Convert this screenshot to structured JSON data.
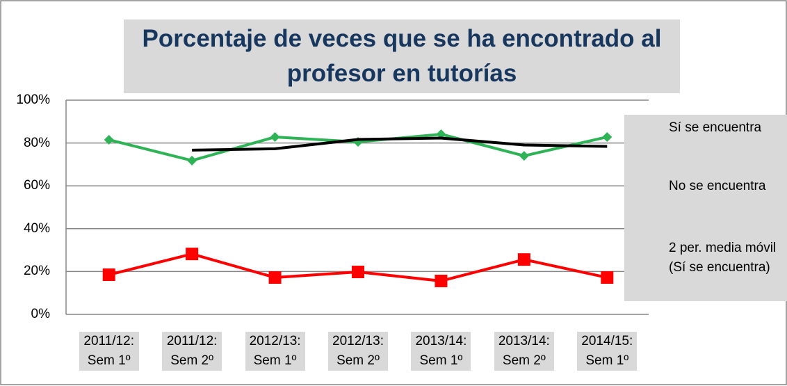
{
  "chart_data": {
    "type": "line",
    "title": "Porcentaje de veces que se ha encontrado al profesor en tutorías",
    "categories": [
      "2011/12: Sem 1º",
      "2011/12: Sem 2º",
      "2012/13: Sem 1º",
      "2012/13: Sem 2º",
      "2013/14: Sem 1º",
      "2013/14: Sem 2º",
      "2014/15: Sem 1º"
    ],
    "series": [
      {
        "name": "Sí se encuentra",
        "color": "#2eb356",
        "marker": "diamond",
        "values": [
          81.5,
          71.8,
          82.8,
          80.5,
          84.1,
          74.0,
          82.8
        ]
      },
      {
        "name": "No se encuentra",
        "color": "#ff0000",
        "marker": "square",
        "values": [
          18.5,
          28.2,
          17.2,
          19.8,
          15.6,
          25.6,
          17.2
        ]
      },
      {
        "name": "2 per. media móvil (Sí se encuentra)",
        "color": "#000000",
        "values": [
          null,
          76.65,
          77.3,
          81.65,
          82.3,
          79.05,
          78.4
        ]
      }
    ],
    "ylim": [
      0,
      100
    ],
    "yticks": [
      {
        "value": 0,
        "label": "0%"
      },
      {
        "value": 20,
        "label": "20%"
      },
      {
        "value": 40,
        "label": "40%"
      },
      {
        "value": 60,
        "label": "60%"
      },
      {
        "value": 80,
        "label": "80%"
      },
      {
        "value": 100,
        "label": "100%"
      }
    ],
    "grid": true,
    "legend": "right"
  }
}
